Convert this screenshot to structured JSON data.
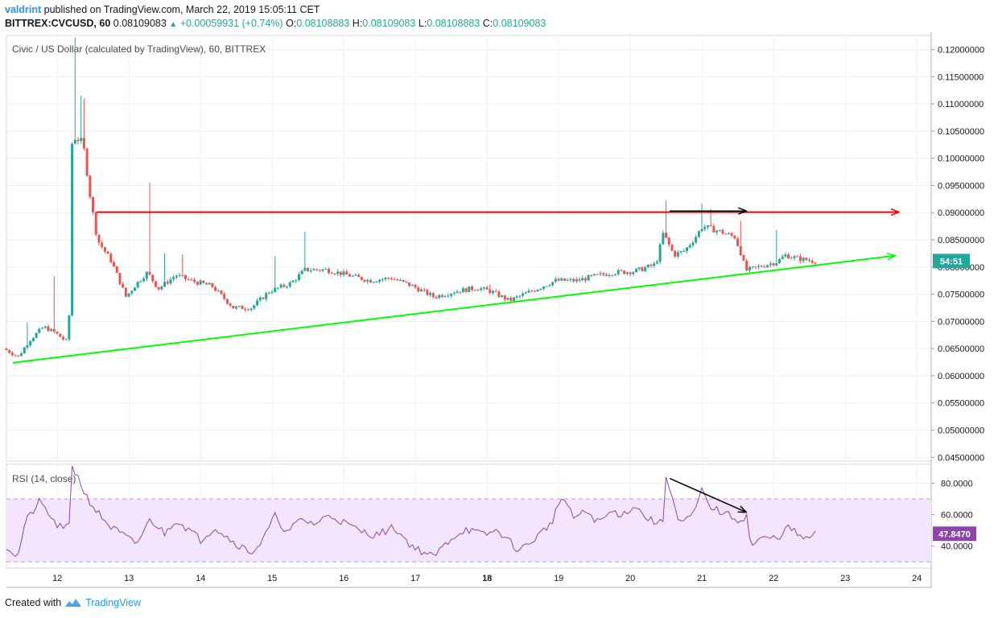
{
  "header": {
    "author": "valdrint",
    "published_text": "published on TradingView.com, March 22, 2019 15:05:11 CET",
    "symbol": "BITTREX:CVCUSD, 60",
    "last_price": "0.08109083",
    "change": "+0.00059931 (+0.74%)",
    "ohlc": {
      "o_label": "O:",
      "o": "0.08108883",
      "h_label": "H:",
      "h": "0.08109083",
      "l_label": "L:",
      "l": "0.08108883",
      "c_label": "C:",
      "c": "0.08109083"
    }
  },
  "footer": {
    "created_with": "Created with",
    "brand": "TradingView"
  },
  "colors": {
    "up": "#26a69a",
    "down": "#ef5350",
    "resistance": "#ff0000",
    "support": "#00ff00",
    "rsi_line": "#8e44ad",
    "rsi_band": "#f3e5fb",
    "grid": "#e8f1f8",
    "arrow": "#000000",
    "countdown_badge": "#26a69a",
    "rsi_badge": "#8e44ad"
  },
  "chart_data": [
    {
      "type": "candlestick",
      "legend": "Civic / US Dollar (calculated by TradingView), 60, BITTREX",
      "x_ticks": [
        "12",
        "13",
        "14",
        "15",
        "16",
        "17",
        "18",
        "19",
        "20",
        "21",
        "22",
        "23",
        "24"
      ],
      "x_tick_values": [
        12,
        13,
        14,
        15,
        16,
        17,
        18,
        19,
        20,
        21,
        22,
        23,
        24
      ],
      "xlim": [
        11.29,
        24.2
      ],
      "y_ticks": [
        "0.12000000",
        "0.11500000",
        "0.11000000",
        "0.10500000",
        "0.10000000",
        "0.09500000",
        "0.09000000",
        "0.08500000",
        "0.08000000",
        "0.07500000",
        "0.07000000",
        "0.06500000",
        "0.06000000",
        "0.05500000",
        "0.05000000",
        "0.04500000"
      ],
      "y_tick_values": [
        0.12,
        0.115,
        0.11,
        0.105,
        0.1,
        0.095,
        0.09,
        0.085,
        0.08,
        0.075,
        0.07,
        0.065,
        0.06,
        0.055,
        0.05,
        0.045
      ],
      "ylim": [
        0.0443,
        0.1226
      ],
      "countdown_label": "54:51",
      "countdown_value": 0.0811,
      "price_anchors": [
        [
          11.29,
          0.065
        ],
        [
          11.5,
          0.0635
        ],
        [
          11.65,
          0.0665
        ],
        [
          11.85,
          0.069
        ],
        [
          12.0,
          0.068
        ],
        [
          12.2,
          0.066
        ],
        [
          12.25,
          0.104
        ],
        [
          12.4,
          0.103
        ],
        [
          12.5,
          0.093
        ],
        [
          12.6,
          0.085
        ],
        [
          12.8,
          0.081
        ],
        [
          13.0,
          0.0745
        ],
        [
          13.15,
          0.077
        ],
        [
          13.3,
          0.079
        ],
        [
          13.45,
          0.076
        ],
        [
          13.7,
          0.0785
        ],
        [
          13.9,
          0.0775
        ],
        [
          14.2,
          0.0765
        ],
        [
          14.5,
          0.0725
        ],
        [
          14.75,
          0.0725
        ],
        [
          15.0,
          0.0755
        ],
        [
          15.3,
          0.077
        ],
        [
          15.5,
          0.0795
        ],
        [
          15.8,
          0.0795
        ],
        [
          16.1,
          0.0785
        ],
        [
          16.4,
          0.0775
        ],
        [
          16.7,
          0.078
        ],
        [
          17.0,
          0.0765
        ],
        [
          17.3,
          0.0745
        ],
        [
          17.6,
          0.0755
        ],
        [
          17.9,
          0.0762
        ],
        [
          18.1,
          0.0755
        ],
        [
          18.35,
          0.0738
        ],
        [
          18.7,
          0.0758
        ],
        [
          19.0,
          0.0775
        ],
        [
          19.3,
          0.0775
        ],
        [
          19.5,
          0.0782
        ],
        [
          19.8,
          0.079
        ],
        [
          20.1,
          0.0792
        ],
        [
          20.4,
          0.0805
        ],
        [
          20.5,
          0.0862
        ],
        [
          20.65,
          0.0822
        ],
        [
          20.8,
          0.083
        ],
        [
          20.95,
          0.0855
        ],
        [
          21.05,
          0.0875
        ],
        [
          21.3,
          0.0865
        ],
        [
          21.5,
          0.0855
        ],
        [
          21.6,
          0.082
        ],
        [
          21.65,
          0.0793
        ],
        [
          21.9,
          0.0803
        ],
        [
          22.1,
          0.081
        ],
        [
          22.2,
          0.0822
        ],
        [
          22.4,
          0.0815
        ],
        [
          22.6,
          0.0811
        ]
      ],
      "spikes": [
        [
          11.6,
          0.0698
        ],
        [
          11.95,
          0.0783
        ],
        [
          12.25,
          0.1222
        ],
        [
          12.33,
          0.1115
        ],
        [
          12.38,
          0.111
        ],
        [
          13.3,
          0.0955
        ],
        [
          13.5,
          0.0825
        ],
        [
          13.75,
          0.0823
        ],
        [
          14.7,
          0.0702
        ],
        [
          15.05,
          0.082
        ],
        [
          15.45,
          0.0865
        ],
        [
          20.5,
          0.0922
        ],
        [
          21.0,
          0.0917
        ],
        [
          21.12,
          0.0907
        ],
        [
          21.55,
          0.0885
        ],
        [
          22.05,
          0.0868
        ],
        [
          18.05,
          0.0768
        ]
      ],
      "annotations": {
        "resistance": {
          "x1": 12.55,
          "x2": 23.75,
          "y": 0.0901
        },
        "support": {
          "x1": 11.38,
          "y1": 0.0624,
          "x2": 23.7,
          "y2": 0.0821
        },
        "top_arrow": {
          "x1": 20.55,
          "x2": 21.62,
          "y": 0.0903
        }
      }
    },
    {
      "type": "line",
      "legend": "RSI (14, close)",
      "y_ticks": [
        "80.0000",
        "60.0000",
        "40.0000"
      ],
      "y_tick_values": [
        80,
        60,
        40
      ],
      "ylim": [
        26,
        92
      ],
      "band": [
        30,
        70
      ],
      "last_value_label": "47.8470",
      "last_value": 47.847,
      "rsi_anchors": [
        [
          11.29,
          40
        ],
        [
          11.45,
          33
        ],
        [
          11.55,
          55
        ],
        [
          11.75,
          68
        ],
        [
          11.85,
          63
        ],
        [
          11.95,
          55
        ],
        [
          12.1,
          50
        ],
        [
          12.2,
          56
        ],
        [
          12.25,
          88
        ],
        [
          12.4,
          72
        ],
        [
          12.55,
          62
        ],
        [
          12.75,
          52
        ],
        [
          12.95,
          46
        ],
        [
          13.1,
          41
        ],
        [
          13.2,
          49
        ],
        [
          13.3,
          57
        ],
        [
          13.5,
          48
        ],
        [
          13.65,
          57
        ],
        [
          13.85,
          50
        ],
        [
          14.0,
          44
        ],
        [
          14.2,
          52
        ],
        [
          14.45,
          43
        ],
        [
          14.7,
          36
        ],
        [
          14.85,
          42
        ],
        [
          15.05,
          60
        ],
        [
          15.2,
          48
        ],
        [
          15.4,
          57
        ],
        [
          15.6,
          54
        ],
        [
          15.8,
          60
        ],
        [
          16.0,
          55
        ],
        [
          16.2,
          50
        ],
        [
          16.45,
          47
        ],
        [
          16.7,
          52
        ],
        [
          16.95,
          40
        ],
        [
          17.25,
          33
        ],
        [
          17.5,
          45
        ],
        [
          17.7,
          51
        ],
        [
          17.95,
          47
        ],
        [
          18.15,
          50
        ],
        [
          18.45,
          37
        ],
        [
          18.7,
          46
        ],
        [
          18.9,
          55
        ],
        [
          19.05,
          72
        ],
        [
          19.2,
          58
        ],
        [
          19.4,
          62
        ],
        [
          19.55,
          55
        ],
        [
          19.75,
          62
        ],
        [
          19.9,
          60
        ],
        [
          20.05,
          66
        ],
        [
          20.25,
          57
        ],
        [
          20.45,
          54
        ],
        [
          20.53,
          81
        ],
        [
          20.68,
          54
        ],
        [
          20.85,
          58
        ],
        [
          21.0,
          73
        ],
        [
          21.15,
          64
        ],
        [
          21.35,
          60
        ],
        [
          21.55,
          56
        ],
        [
          21.62,
          60
        ],
        [
          21.68,
          40
        ],
        [
          21.85,
          45
        ],
        [
          22.05,
          45
        ],
        [
          22.2,
          52
        ],
        [
          22.35,
          47
        ],
        [
          22.45,
          44
        ],
        [
          22.6,
          48
        ]
      ],
      "rsi_spikes": [
        [
          12.22,
          91
        ],
        [
          20.5,
          84
        ],
        [
          20.98,
          77
        ]
      ],
      "annotations": {
        "divergence_arrow": {
          "x1": 20.55,
          "y1": 83,
          "x2": 21.62,
          "y2": 61.5
        }
      }
    }
  ]
}
